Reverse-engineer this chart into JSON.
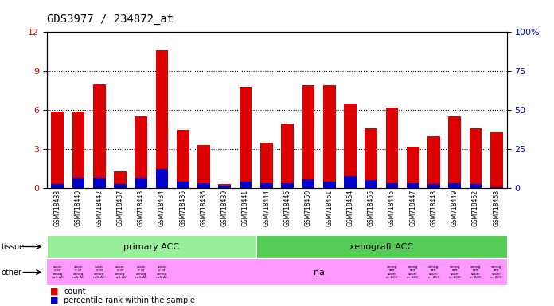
{
  "title": "GDS3977 / 234872_at",
  "samples": [
    "GSM718438",
    "GSM718440",
    "GSM718442",
    "GSM718437",
    "GSM718443",
    "GSM718434",
    "GSM718435",
    "GSM718436",
    "GSM718439",
    "GSM718441",
    "GSM718444",
    "GSM718446",
    "GSM718450",
    "GSM718451",
    "GSM718454",
    "GSM718455",
    "GSM718445",
    "GSM718447",
    "GSM718448",
    "GSM718449",
    "GSM718452",
    "GSM718453"
  ],
  "count_values": [
    5.9,
    5.9,
    8.0,
    1.3,
    5.5,
    10.6,
    4.5,
    3.3,
    0.3,
    7.8,
    3.5,
    5.0,
    7.9,
    7.9,
    6.5,
    4.6,
    6.2,
    3.2,
    4.0,
    5.5,
    4.6,
    4.3
  ],
  "percentile_values": [
    0.3,
    0.8,
    0.8,
    0.3,
    0.8,
    1.5,
    0.5,
    0.4,
    0.2,
    0.5,
    0.4,
    0.4,
    0.7,
    0.5,
    0.9,
    0.6,
    0.4,
    0.4,
    0.3,
    0.4,
    0.3,
    0.1
  ],
  "ylim_left": [
    0,
    12
  ],
  "ylim_right": [
    0,
    100
  ],
  "yticks_left": [
    0,
    3,
    6,
    9,
    12
  ],
  "yticks_right": [
    0,
    25,
    50,
    75,
    100
  ],
  "count_color": "#dd0000",
  "percentile_color": "#0000cc",
  "bg_color": "#ffffff",
  "plot_bg_color": "#ffffff",
  "bar_width": 0.6,
  "title_fontsize": 10,
  "tissue_groups": [
    {
      "label": "primary ACC",
      "start": 0,
      "end": 10,
      "color": "#99ee99"
    },
    {
      "label": "xenograft ACC",
      "start": 10,
      "end": 22,
      "color": "#55cc55"
    }
  ],
  "other_small_texts_left": [
    "sourc\ne of\nxenog\nraft AC",
    "sourc\ne of\nxenog\nraft AC",
    "sourc\ne of\nxenog\nraft AC",
    "sourc\ne of\nxenog\nraft AC",
    "sourc\ne of\nxenog\nraft AC",
    "sourc\ne of\nxenog\nraft AC"
  ],
  "other_na_label": "na",
  "other_small_texts_right": [
    "xenog\nraft\nsourc\ne: ACC",
    "xenog\nraft\nsourc\ne: ACC",
    "xenog\nraft\nsourc\ne: ACC",
    "xenog\nraft\nsourc\ne: ACC",
    "xenog\nraft\nsourc\ne: ACC",
    "xenog\nraft\nsourc\ne: ACC"
  ],
  "tissue_row_label": "tissue",
  "other_row_label": "other",
  "legend_count_label": "count",
  "legend_pct_label": "percentile rank within the sample",
  "pink_color": "#ff99ff"
}
